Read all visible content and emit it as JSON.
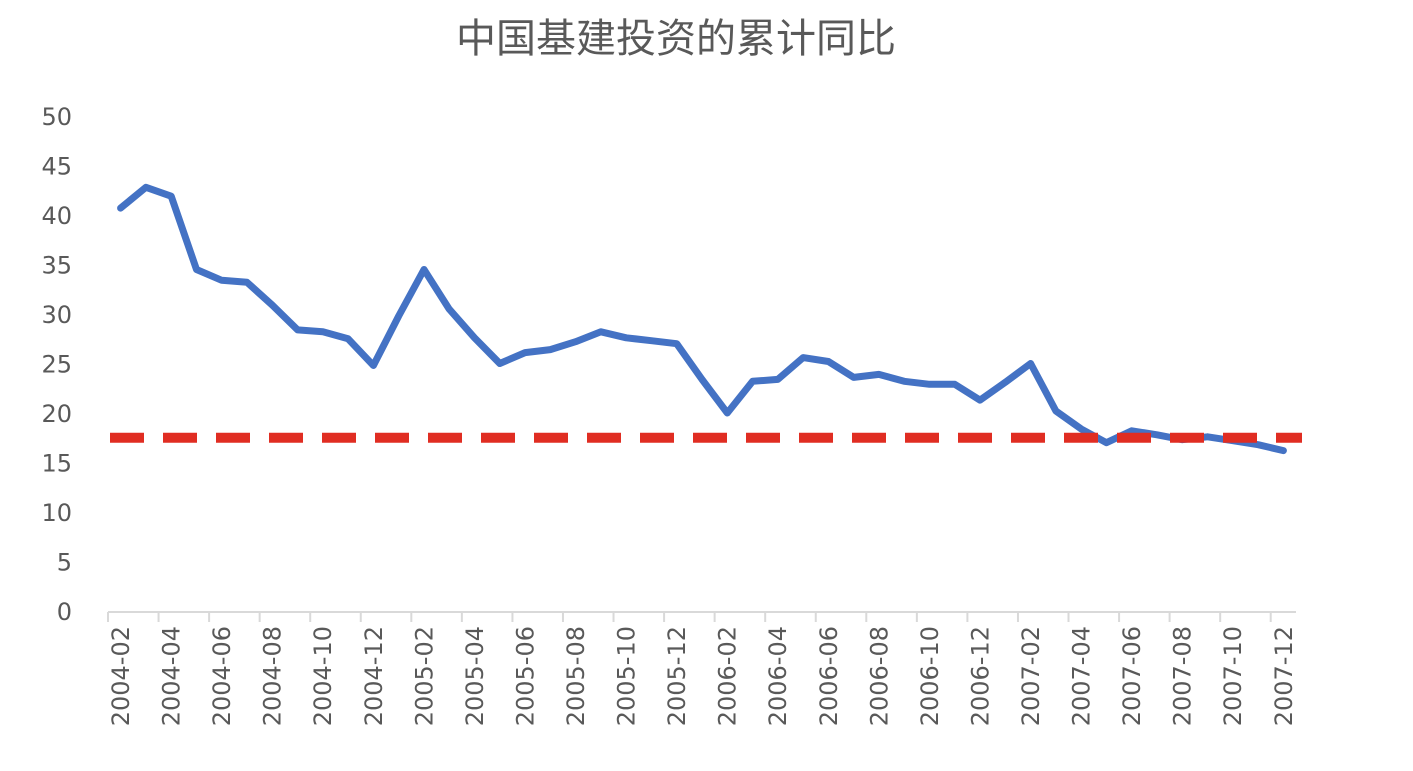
{
  "chart_data": {
    "type": "line",
    "title": "中国基建投资的累计同比",
    "xlabel": "",
    "ylabel": "",
    "ylim": [
      0,
      50
    ],
    "yticks": [
      "0",
      "5",
      "10",
      "15",
      "20",
      "25",
      "30",
      "35",
      "40",
      "45",
      "50"
    ],
    "grid": false,
    "legend": "none",
    "x": [
      "2004-02",
      "2004-03",
      "2004-04",
      "2004-05",
      "2004-06",
      "2004-07",
      "2004-08",
      "2004-09",
      "2004-10",
      "2004-11",
      "2004-12",
      "2005-01",
      "2005-02",
      "2005-03",
      "2005-04",
      "2005-05",
      "2005-06",
      "2005-07",
      "2005-08",
      "2005-09",
      "2005-10",
      "2005-11",
      "2005-12",
      "2006-01",
      "2006-02",
      "2006-03",
      "2006-04",
      "2006-05",
      "2006-06",
      "2006-07",
      "2006-08",
      "2006-09",
      "2006-10",
      "2006-11",
      "2006-12",
      "2007-01",
      "2007-02",
      "2007-03",
      "2007-04",
      "2007-05",
      "2007-06",
      "2007-07",
      "2007-08",
      "2007-09",
      "2007-10",
      "2007-11",
      "2007-12"
    ],
    "xtick_labels": [
      "2004-02",
      "2004-04",
      "2004-06",
      "2004-08",
      "2004-10",
      "2004-12",
      "2005-02",
      "2005-04",
      "2005-06",
      "2005-08",
      "2005-10",
      "2005-12",
      "2006-02",
      "2006-04",
      "2006-06",
      "2006-08",
      "2006-10",
      "2006-12",
      "2007-02",
      "2007-04",
      "2007-06",
      "2007-08",
      "2007-10",
      "2007-12"
    ],
    "series": [
      {
        "color": "#4472C4",
        "values": [
          40.8,
          42.9,
          42.0,
          34.6,
          33.5,
          33.3,
          31.0,
          28.5,
          28.3,
          27.6,
          24.9,
          29.9,
          34.6,
          30.6,
          27.7,
          25.1,
          26.2,
          26.5,
          27.3,
          28.3,
          27.7,
          27.4,
          27.1,
          23.5,
          20.1,
          23.3,
          23.5,
          25.7,
          25.3,
          23.7,
          24.0,
          23.3,
          23.0,
          23.0,
          21.4,
          23.2,
          25.1,
          20.3,
          18.5,
          17.1,
          18.3,
          17.9,
          17.4,
          17.7,
          17.3,
          16.9,
          16.3
        ]
      }
    ],
    "reference_line": {
      "value": 17.6,
      "color": "#E02D22",
      "style": "dashed"
    },
    "axis_color": "#D9D9D9",
    "text_color": "#595959"
  }
}
